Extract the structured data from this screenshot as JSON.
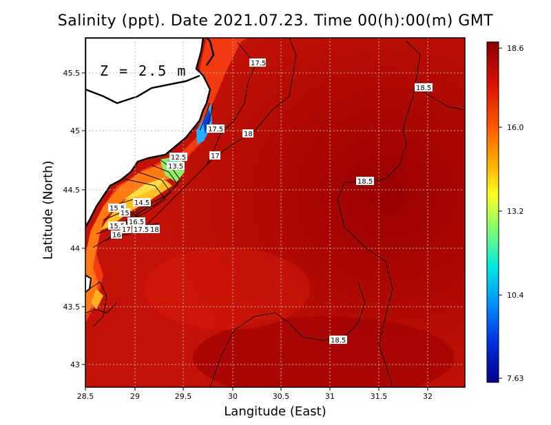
{
  "title": "Salinity (ppt). Date 2021.07.23. Time 00(h):00(m) GMT",
  "depth_label": "Z = 2.5 m",
  "xlabel": "Langitude (East)",
  "ylabel": "Latitude (North)",
  "x_ticks": [
    "28.5",
    "29",
    "29.5",
    "30",
    "30.5",
    "31",
    "31.5",
    "32"
  ],
  "y_ticks": [
    "45.5",
    "45",
    "44.5",
    "44",
    "43.5",
    "43"
  ],
  "colorbar_ticks": [
    "18.6",
    "16.0",
    "13.2",
    "10.4",
    "7.63"
  ],
  "contour_labels": [
    "17.5",
    "18.5",
    "17.5",
    "18",
    "17",
    "12.5",
    "13.5",
    "18.5",
    "14.5",
    "15.5",
    "15",
    "15.5",
    "16.5",
    "17",
    "17.5",
    "18",
    "16",
    "18.5"
  ],
  "colors": {
    "sea": "#c61208",
    "sea_far": "#a80404",
    "land_border": "#000000",
    "colorbar_top": "#8b0000",
    "colorbar_bottom": "#00008b"
  }
}
